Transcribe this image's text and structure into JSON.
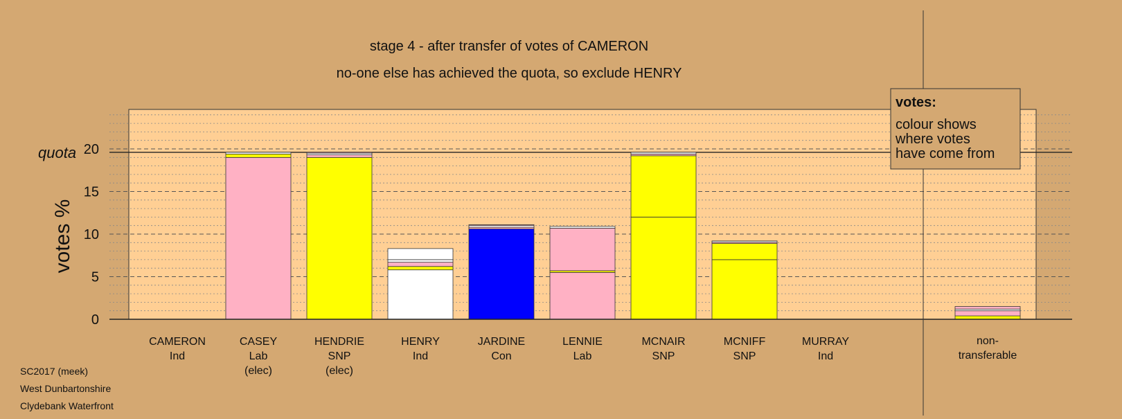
{
  "chart_data": {
    "type": "bar",
    "stacked": true,
    "title": "stage 4 - after transfer of votes of CAMERON",
    "subtitle": "no-one else has achieved the quota, so exclude HENRY",
    "ylabel": "votes %",
    "ylim": [
      0,
      25
    ],
    "yticks": [
      "0",
      "5",
      "10",
      "15",
      "20"
    ],
    "grid": true,
    "quota": 19.6,
    "quota_label": "quota",
    "colors": {
      "background": "#d4a872",
      "plot": "#ffcf94",
      "Lab": "#ffb1c4",
      "SNP": "#ffff00",
      "Ind": "#ffffff",
      "Con": "#0000ff"
    },
    "candidates": [
      {
        "name": "CAMERON",
        "party": "Ind",
        "status": "",
        "segments": []
      },
      {
        "name": "CASEY",
        "party": "Lab",
        "status": "(elec)",
        "segments": [
          {
            "value": 19.0,
            "color": "#ffb1c4"
          },
          {
            "value": 0.4,
            "color": "#ffff00"
          },
          {
            "value": 0.2,
            "color": "#ffffff"
          }
        ]
      },
      {
        "name": "HENDRIE",
        "party": "SNP",
        "status": "(elec)",
        "segments": [
          {
            "value": 19.0,
            "color": "#ffff00"
          },
          {
            "value": 0.3,
            "color": "#ffb1c4"
          },
          {
            "value": 0.2,
            "color": "#ffffff"
          },
          {
            "value": 0.1,
            "color": "#ffb1c4"
          }
        ]
      },
      {
        "name": "HENRY",
        "party": "Ind",
        "status": "",
        "segments": [
          {
            "value": 5.8,
            "color": "#ffffff"
          },
          {
            "value": 0.4,
            "color": "#ffff00"
          },
          {
            "value": 0.5,
            "color": "#ffb1c4"
          },
          {
            "value": 0.3,
            "color": "#ffffff"
          },
          {
            "value": 1.3,
            "color": "#ffffff"
          }
        ]
      },
      {
        "name": "JARDINE",
        "party": "Con",
        "status": "",
        "segments": [
          {
            "value": 10.6,
            "color": "#0000ff"
          },
          {
            "value": 0.2,
            "color": "#ffb1c4"
          },
          {
            "value": 0.2,
            "color": "#ffffff"
          },
          {
            "value": 0.1,
            "color": "#ffb1c4"
          }
        ]
      },
      {
        "name": "LENNIE",
        "party": "Lab",
        "status": "",
        "segments": [
          {
            "value": 5.5,
            "color": "#ffb1c4"
          },
          {
            "value": 0.2,
            "color": "#ffff00"
          },
          {
            "value": 5.0,
            "color": "#ffb1c4"
          },
          {
            "value": 0.2,
            "color": "#ffffff"
          }
        ]
      },
      {
        "name": "MCNAIR",
        "party": "SNP",
        "status": "",
        "segments": [
          {
            "value": 12.0,
            "color": "#ffff00"
          },
          {
            "value": 7.2,
            "color": "#ffff00"
          },
          {
            "value": 0.2,
            "color": "#ffb1c4"
          },
          {
            "value": 0.2,
            "color": "#ffffff"
          }
        ]
      },
      {
        "name": "MCNIFF",
        "party": "SNP",
        "status": "",
        "segments": [
          {
            "value": 7.0,
            "color": "#ffff00"
          },
          {
            "value": 1.9,
            "color": "#ffff00"
          },
          {
            "value": 0.15,
            "color": "#ffb1c4"
          },
          {
            "value": 0.15,
            "color": "#ffffff"
          }
        ]
      },
      {
        "name": "MURRAY",
        "party": "Ind",
        "status": "",
        "segments": []
      }
    ],
    "nontransferable": {
      "label_line1": "non-",
      "label_line2": "transferable",
      "segments": [
        {
          "value": 0.4,
          "color": "#ffff00"
        },
        {
          "value": 0.6,
          "color": "#ffb1c4"
        },
        {
          "value": 0.2,
          "color": "#ffffff"
        },
        {
          "value": 0.3,
          "color": "#ffb1c4"
        }
      ]
    },
    "legend": {
      "title": "votes:",
      "lines": [
        "colour shows",
        "where votes",
        "have come from"
      ]
    }
  },
  "footer": {
    "line1": "SC2017 (meek)",
    "line2": "West Dunbartonshire",
    "line3": "Clydebank Waterfront"
  }
}
